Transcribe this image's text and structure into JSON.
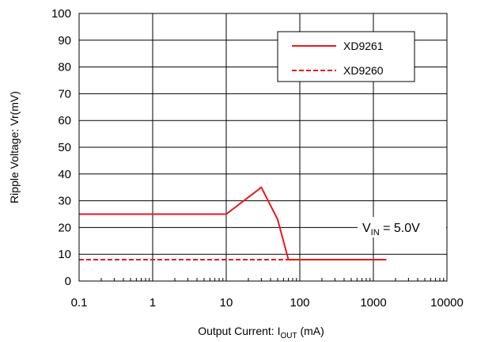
{
  "chart_data": {
    "type": "line",
    "xscale": "log",
    "xlim": [
      0.1,
      10000
    ],
    "ylim": [
      0,
      100
    ],
    "xticks": [
      "0.1",
      "1",
      "10",
      "100",
      "1000",
      "10000"
    ],
    "yticks": [
      "0",
      "10",
      "20",
      "30",
      "40",
      "50",
      "60",
      "70",
      "80",
      "90",
      "100"
    ],
    "grid": true,
    "legend_position": "top-right",
    "ylabel": "Ripple Voltage: Vr(mV)",
    "xlabel": {
      "prefix": "Output Current: I",
      "subscript": "OUT",
      "suffix": " (mA)"
    },
    "annotation": {
      "prefix": "V",
      "subscript": "IN",
      "suffix": " = 5.0V"
    },
    "series": [
      {
        "name": "XD9261",
        "style": "solid",
        "color": "#e8191f",
        "points": [
          [
            0.1,
            25
          ],
          [
            10,
            25
          ],
          [
            30,
            35
          ],
          [
            50,
            23
          ],
          [
            70,
            8
          ],
          [
            1500,
            8
          ]
        ]
      },
      {
        "name": "XD9260",
        "style": "dashed",
        "color": "#e8191f",
        "points": [
          [
            0.1,
            8
          ],
          [
            1500,
            8
          ]
        ]
      }
    ]
  }
}
